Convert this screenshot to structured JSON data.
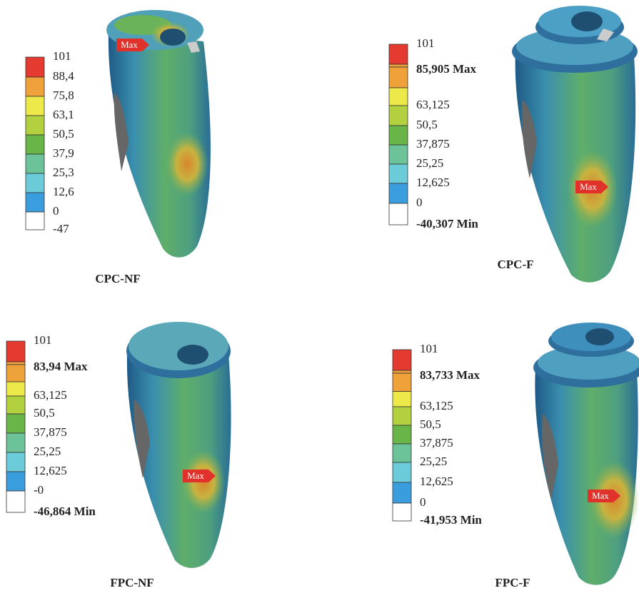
{
  "panels": [
    {
      "caption": "CPC-NF",
      "marker": "Max",
      "legend": [
        "101",
        "88,4",
        "75,8",
        "63,1",
        "50,5",
        "37,9",
        "25,3",
        "12,6",
        "0",
        "-47"
      ]
    },
    {
      "caption": "CPC-F",
      "marker": "Max",
      "legend": [
        "101",
        "85,905 Max",
        "63,125",
        "50,5",
        "37,875",
        "25,25",
        "12,625",
        "0",
        "-40,307 Min"
      ]
    },
    {
      "caption": "FPC-NF",
      "marker": "Max",
      "legend": [
        "101",
        "83,94 Max",
        "63,125",
        "50,5",
        "37,875",
        "25,25",
        "12,625",
        "-0",
        "-46,864 Min"
      ]
    },
    {
      "caption": "FPC-F",
      "marker": "Max",
      "legend": [
        "101",
        "83,733 Max",
        "63,125",
        "50,5",
        "37,875",
        "25,25",
        "12,625",
        "0",
        "-41,953 Min"
      ]
    }
  ]
}
